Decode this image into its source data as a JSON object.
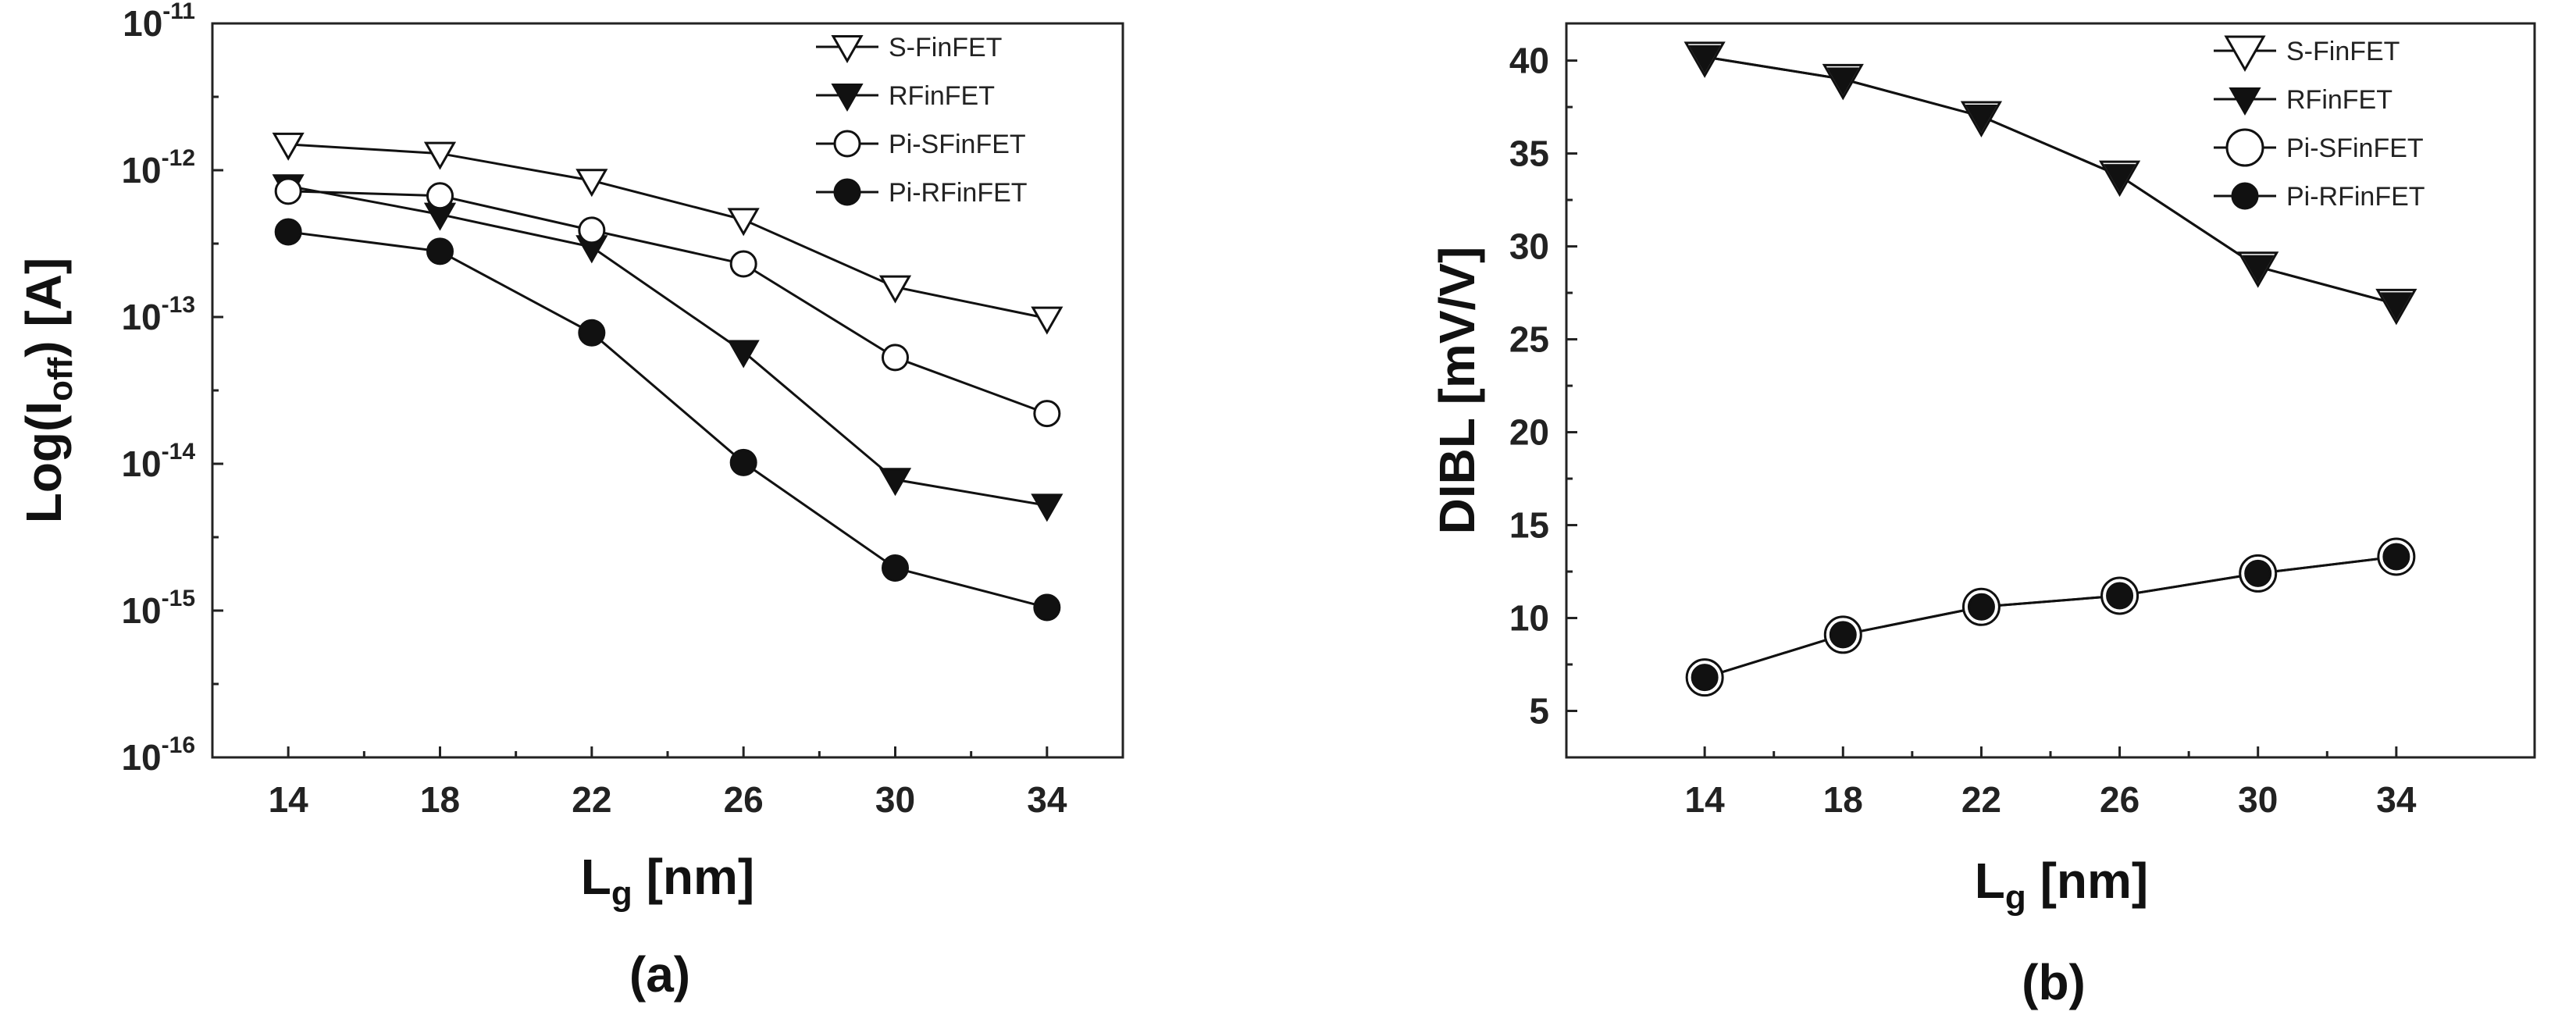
{
  "chart_data": [
    {
      "type": "line",
      "panel_label": "(a)",
      "xlabel": "L",
      "xlabel_sub": "g",
      "xlabel_unit": "[nm]",
      "ylabel": "Log(I",
      "ylabel_sub": "off",
      "ylabel_unit": ") [A]",
      "yscale": "log",
      "ylim": [
        1e-16,
        1e-11
      ],
      "xlim": [
        12,
        36
      ],
      "x": [
        14,
        18,
        22,
        26,
        30,
        34
      ],
      "xticks": [
        "14",
        "18",
        "22",
        "26",
        "30",
        "34"
      ],
      "yticks": [
        {
          "base": "10",
          "exp": "-16",
          "value": -16
        },
        {
          "base": "10",
          "exp": "-15",
          "value": -15
        },
        {
          "base": "10",
          "exp": "-14",
          "value": -14
        },
        {
          "base": "10",
          "exp": "-13",
          "value": -13
        },
        {
          "base": "10",
          "exp": "-12",
          "value": -12
        },
        {
          "base": "10",
          "exp": "-11",
          "value": -11
        }
      ],
      "legend_position": "top-right",
      "series": [
        {
          "name": "S-FinFET",
          "marker": "triangle-down-open",
          "values": [
            1.5e-12,
            1.3e-12,
            8.5e-13,
            4.6e-13,
            1.6e-13,
            9.8e-14
          ]
        },
        {
          "name": "RFinFET",
          "marker": "triangle-down-filled",
          "values": [
            7.8e-13,
            5e-13,
            3e-13,
            5.8e-14,
            7.8e-15,
            5.2e-15
          ]
        },
        {
          "name": "Pi-SFinFET",
          "marker": "circle-open",
          "values": [
            7.2e-13,
            6.7e-13,
            3.9e-13,
            2.3e-13,
            5.3e-14,
            2.2e-14
          ]
        },
        {
          "name": "Pi-RFinFET",
          "marker": "circle-filled",
          "values": [
            3.8e-13,
            2.8e-13,
            7.8e-14,
            1.02e-14,
            1.95e-15,
            1.05e-15
          ]
        }
      ]
    },
    {
      "type": "line",
      "panel_label": "(b)",
      "xlabel": "L",
      "xlabel_sub": "g",
      "xlabel_unit": "[nm]",
      "ylabel": "DIBL [mV/V]",
      "yscale": "linear",
      "ylim": [
        2.5,
        42
      ],
      "xlim": [
        10,
        38
      ],
      "x": [
        14,
        18,
        22,
        26,
        30,
        34
      ],
      "xticks": [
        "14",
        "18",
        "22",
        "26",
        "30",
        "34"
      ],
      "yticks": [
        "5",
        "10",
        "15",
        "20",
        "25",
        "30",
        "35",
        "40"
      ],
      "legend_position": "top-right",
      "series": [
        {
          "name": "S-FinFET",
          "marker": "triangle-down-open-large",
          "values": [
            40.2,
            39.0,
            37.0,
            33.8,
            28.9,
            26.9
          ]
        },
        {
          "name": "RFinFET",
          "marker": "triangle-down-filled",
          "values": [
            40.2,
            39.0,
            37.0,
            33.8,
            28.9,
            26.9
          ]
        },
        {
          "name": "Pi-SFinFET",
          "marker": "circle-open-large",
          "values": [
            6.8,
            9.1,
            10.6,
            11.2,
            12.4,
            13.3
          ]
        },
        {
          "name": "Pi-RFinFET",
          "marker": "circle-filled",
          "values": [
            6.8,
            9.1,
            10.6,
            11.2,
            12.4,
            13.3
          ]
        }
      ]
    }
  ]
}
